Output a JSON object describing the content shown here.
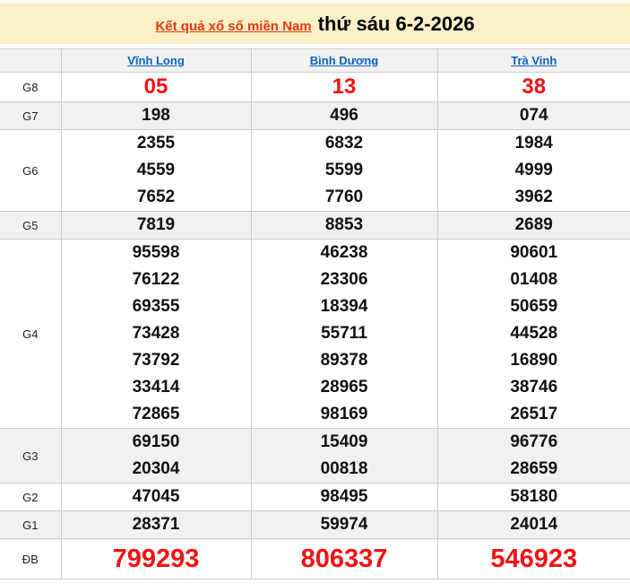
{
  "header": {
    "title_link": "Kết quả xổ số miền Nam",
    "date_text": "thứ sáu 6-2-2026"
  },
  "table": {
    "provinces": [
      "Vĩnh Long",
      "Bình Dương",
      "Trà Vinh"
    ],
    "rows": [
      {
        "label": "G8",
        "style": "g8",
        "values": [
          [
            "05"
          ],
          [
            "13"
          ],
          [
            "38"
          ]
        ]
      },
      {
        "label": "G7",
        "values": [
          [
            "198"
          ],
          [
            "496"
          ],
          [
            "074"
          ]
        ]
      },
      {
        "label": "G6",
        "values": [
          [
            "2355",
            "4559",
            "7652"
          ],
          [
            "6832",
            "5599",
            "7760"
          ],
          [
            "1984",
            "4999",
            "3962"
          ]
        ]
      },
      {
        "label": "G5",
        "values": [
          [
            "7819"
          ],
          [
            "8853"
          ],
          [
            "2689"
          ]
        ]
      },
      {
        "label": "G4",
        "values": [
          [
            "95598",
            "76122",
            "69355",
            "73428",
            "73792",
            "33414",
            "72865"
          ],
          [
            "46238",
            "23306",
            "18394",
            "55711",
            "89378",
            "28965",
            "98169"
          ],
          [
            "90601",
            "01408",
            "50659",
            "44528",
            "16890",
            "38746",
            "26517"
          ]
        ]
      },
      {
        "label": "G3",
        "values": [
          [
            "69150",
            "20304"
          ],
          [
            "15409",
            "00818"
          ],
          [
            "96776",
            "28659"
          ]
        ]
      },
      {
        "label": "G2",
        "values": [
          [
            "47045"
          ],
          [
            "98495"
          ],
          [
            "58180"
          ]
        ]
      },
      {
        "label": "G1",
        "values": [
          [
            "28371"
          ],
          [
            "59974"
          ],
          [
            "24014"
          ]
        ]
      },
      {
        "label": "ĐB",
        "style": "db",
        "values": [
          [
            "799293"
          ],
          [
            "806337"
          ],
          [
            "546923"
          ]
        ]
      }
    ]
  },
  "colors": {
    "banner_bg": "#fbf0c6",
    "title_red": "#e6380f",
    "number_red": "#f21212",
    "link_blue": "#0a62c1",
    "stripe_gray": "#f1f1f1",
    "head_bg": "#f2f2f2"
  }
}
